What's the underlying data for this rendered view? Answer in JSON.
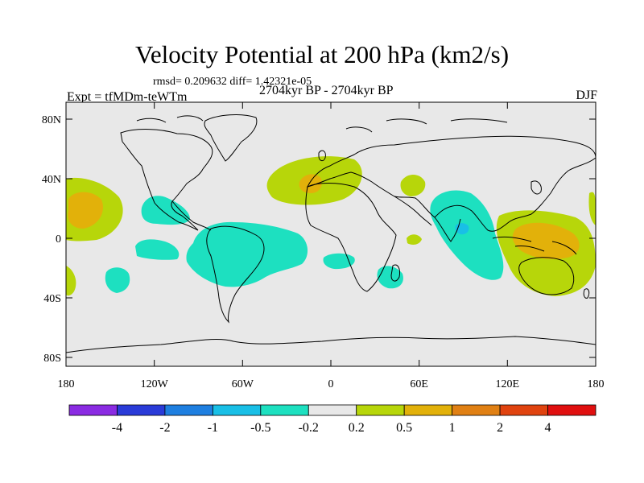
{
  "title": "Velocity Potential at 200 hPa (km2/s)",
  "stats": "rmsd= 0.209632  diff= 1.42321e-05",
  "experiment": "Expt = tfMDm-teWTm",
  "period": "2704kyr BP - 2704kyr BP",
  "season": "DJF",
  "lat_ticks": [
    "80N",
    "40N",
    "0",
    "40S",
    "80S"
  ],
  "lon_ticks": [
    "180",
    "120W",
    "60W",
    "0",
    "60E",
    "120E",
    "180"
  ],
  "colorbar": {
    "colors": [
      "#8a2be2",
      "#2a3bd8",
      "#1e7fe0",
      "#19bfe6",
      "#1de0c0",
      "#e8e8e8",
      "#b7d60a",
      "#e2b10a",
      "#e08014",
      "#e0430f",
      "#e00f0f"
    ],
    "labels": [
      "-4",
      "-2",
      "-1",
      "-0.5",
      "-0.2",
      "0.2",
      "0.5",
      "1",
      "2",
      "4"
    ]
  },
  "colors": {
    "ocean": "#e8e8e8",
    "cyan": "#1de0c0",
    "blue": "#19bfe6",
    "yellow": "#b7d60a",
    "orange": "#e2b10a"
  }
}
